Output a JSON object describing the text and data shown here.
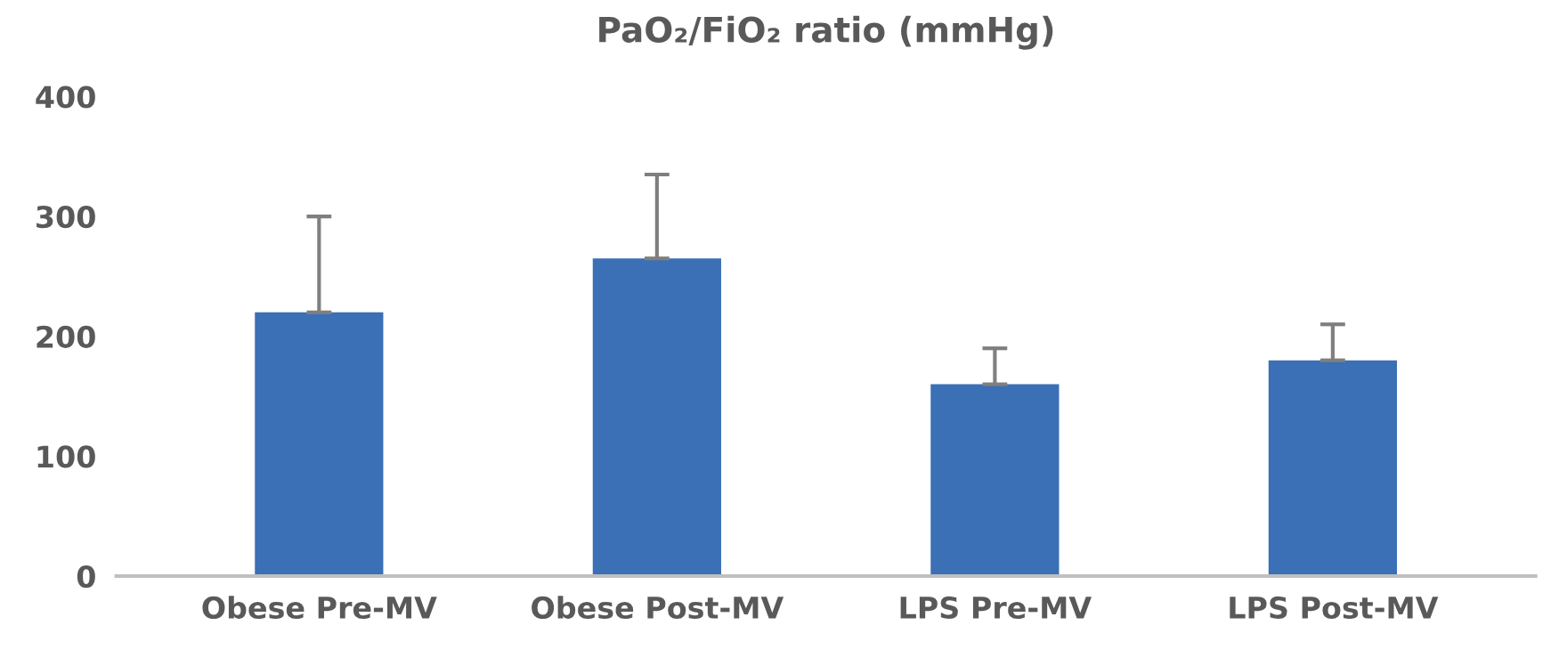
{
  "chart_data": {
    "type": "bar",
    "title": "PaO₂/FiO₂ ratio (mmHg)",
    "categories": [
      "Obese Pre-MV",
      "Obese Post-MV",
      "LPS Pre-MV",
      "LPS Post-MV"
    ],
    "values": [
      220,
      265,
      160,
      180
    ],
    "errors": [
      [
        220,
        300
      ],
      [
        265,
        335
      ],
      [
        160,
        190
      ],
      [
        180,
        210
      ]
    ],
    "color": "#3b6fb6",
    "ylim": [
      0,
      400
    ],
    "yticks": [
      0,
      100,
      200,
      300,
      400
    ],
    "grid": false
  }
}
